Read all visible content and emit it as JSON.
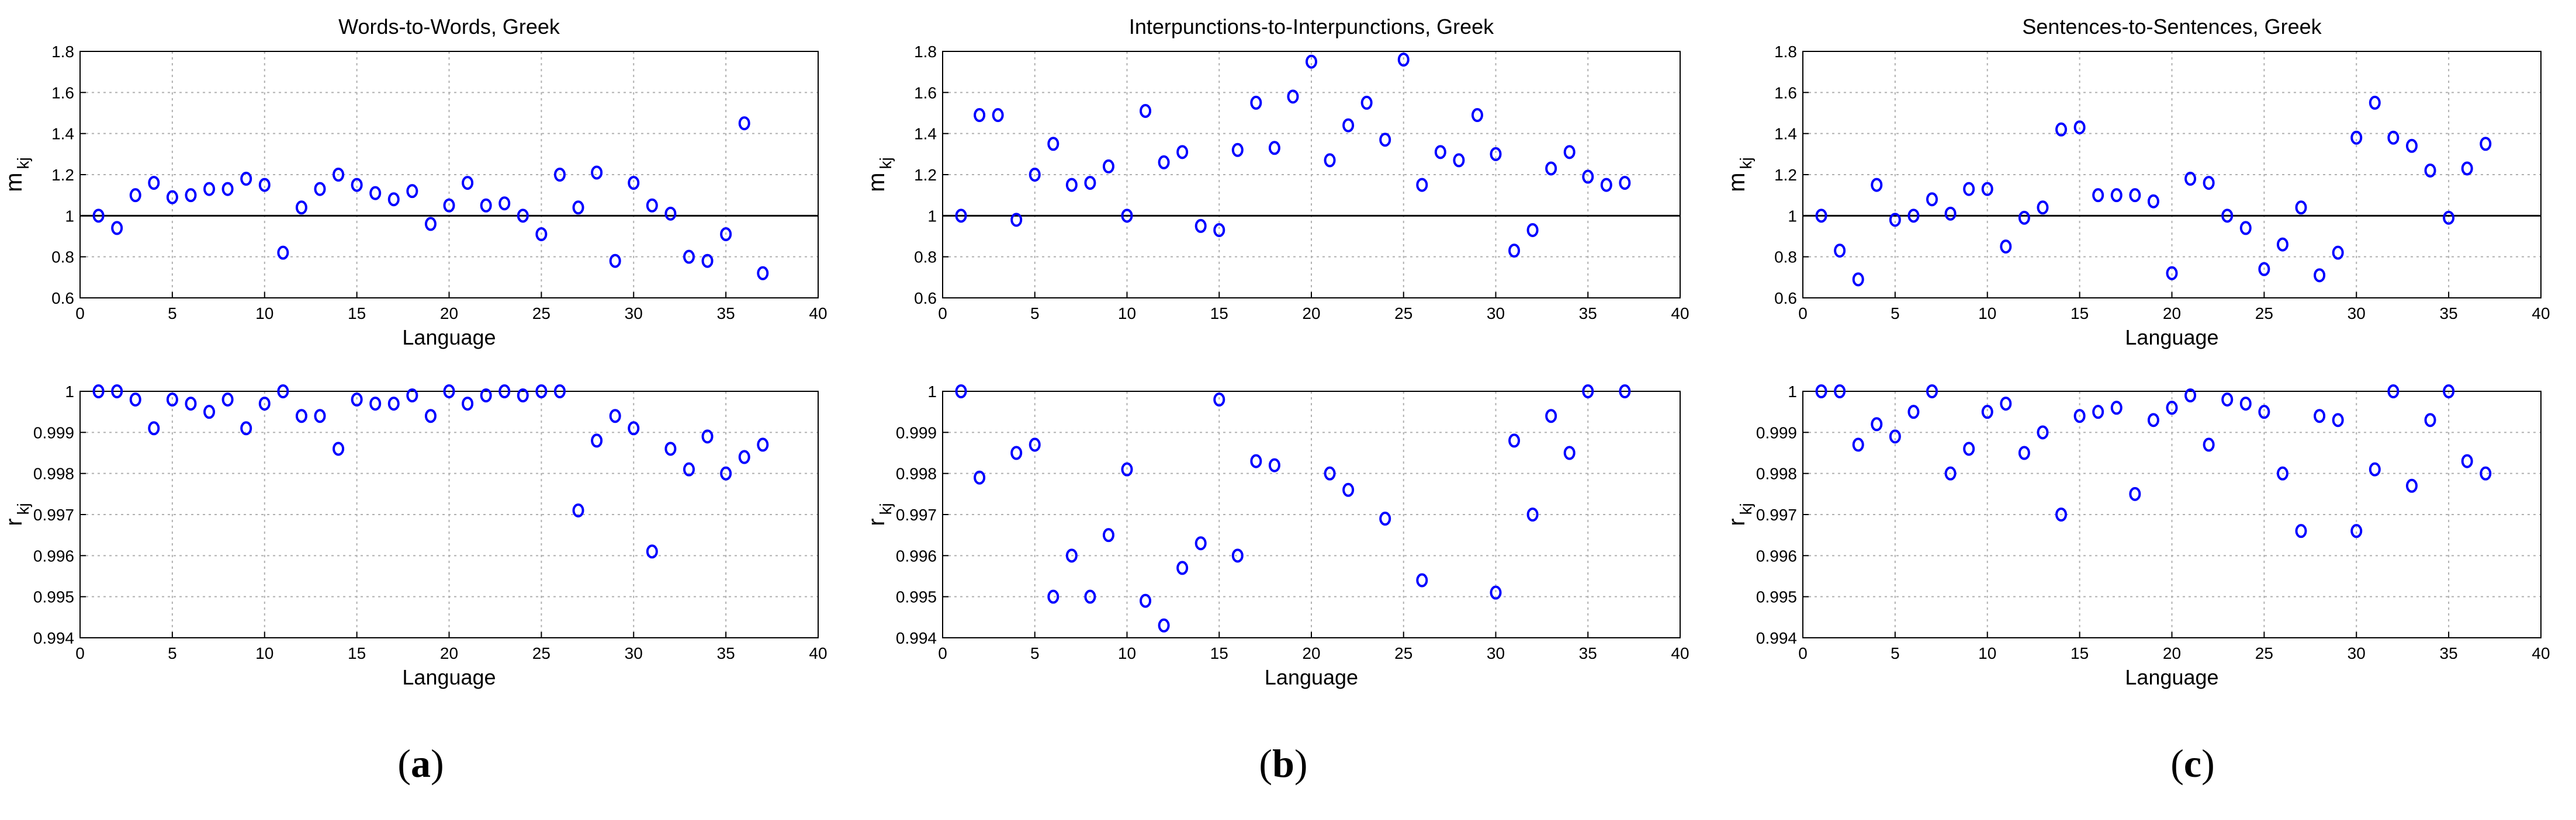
{
  "colors": {
    "marker": "#0000ff",
    "reference_line": "#000000",
    "grid": "#b0b0b0",
    "axes": "#000000"
  },
  "captions": [
    {
      "open": "(",
      "letter": "a",
      "close": ")"
    },
    {
      "open": "(",
      "letter": "b",
      "close": ")"
    },
    {
      "open": "(",
      "letter": "c",
      "close": ")"
    }
  ],
  "chart_data": [
    {
      "type": "scatter",
      "panel": "a",
      "row": "top",
      "title": "Words-to-Words, Greek",
      "xlabel": "Language",
      "ylabel": "m kj",
      "xlim": [
        0,
        40
      ],
      "ylim": [
        0.6,
        1.8
      ],
      "grid": true,
      "reference_line_y": 1,
      "xticks": [
        "0",
        "5",
        "10",
        "15",
        "20",
        "25",
        "30",
        "35",
        "40"
      ],
      "yticks": [
        "0.6",
        "0.8",
        "1",
        "1.2",
        "1.4",
        "1.6",
        "1.8"
      ],
      "x": [
        1,
        2,
        3,
        4,
        5,
        6,
        7,
        8,
        9,
        10,
        11,
        12,
        13,
        14,
        15,
        16,
        17,
        18,
        19,
        20,
        21,
        22,
        23,
        24,
        25,
        26,
        27,
        28,
        29,
        30,
        31,
        32,
        33,
        34,
        35,
        36,
        37
      ],
      "y": [
        1.0,
        0.94,
        1.1,
        1.16,
        1.09,
        1.1,
        1.13,
        1.13,
        1.18,
        1.15,
        0.82,
        1.04,
        1.13,
        1.2,
        1.15,
        1.11,
        1.08,
        1.12,
        0.96,
        1.05,
        1.16,
        1.05,
        1.06,
        1.0,
        0.91,
        1.2,
        1.04,
        1.21,
        0.78,
        1.16,
        1.05,
        1.01,
        0.8,
        0.78,
        0.91,
        1.45,
        0.72
      ]
    },
    {
      "type": "scatter",
      "panel": "a",
      "row": "bottom",
      "title": "",
      "xlabel": "Language",
      "ylabel": "r kj",
      "xlim": [
        0,
        40
      ],
      "ylim": [
        0.994,
        1.0
      ],
      "grid": true,
      "xticks": [
        "0",
        "5",
        "10",
        "15",
        "20",
        "25",
        "30",
        "35",
        "40"
      ],
      "yticks": [
        "0.994",
        "0.995",
        "0.996",
        "0.997",
        "0.998",
        "0.999",
        "1"
      ],
      "x": [
        1,
        2,
        3,
        4,
        5,
        6,
        7,
        8,
        9,
        10,
        11,
        12,
        13,
        14,
        15,
        16,
        17,
        18,
        19,
        20,
        21,
        22,
        23,
        24,
        25,
        26,
        27,
        28,
        29,
        30,
        31,
        32,
        33,
        34,
        35,
        36,
        37
      ],
      "y": [
        1.0,
        1.0,
        0.9998,
        0.9991,
        0.9998,
        0.9997,
        0.9995,
        0.9998,
        0.9991,
        0.9997,
        1.0,
        0.9994,
        0.9994,
        0.9986,
        0.9998,
        0.9997,
        0.9997,
        0.9999,
        0.9994,
        1.0,
        0.9997,
        0.9999,
        1.0,
        0.9999,
        1.0,
        1.0,
        0.9971,
        0.9988,
        0.9994,
        0.9991,
        0.9961,
        0.9986,
        0.9981,
        0.9989,
        0.998,
        0.9984,
        0.9987
      ]
    },
    {
      "type": "scatter",
      "panel": "b",
      "row": "top",
      "title": "Interpunctions-to-Interpunctions, Greek",
      "xlabel": "",
      "ylabel": "m kj",
      "xlim": [
        0,
        40
      ],
      "ylim": [
        0.6,
        1.8
      ],
      "grid": true,
      "reference_line_y": 1,
      "xticks": [
        "0",
        "5",
        "10",
        "15",
        "20",
        "25",
        "30",
        "35",
        "40"
      ],
      "yticks": [
        "0.6",
        "0.8",
        "1",
        "1.2",
        "1.4",
        "1.6",
        "1.8"
      ],
      "x": [
        1,
        2,
        3,
        4,
        5,
        6,
        7,
        8,
        9,
        10,
        11,
        12,
        13,
        14,
        15,
        16,
        17,
        18,
        19,
        20,
        21,
        22,
        23,
        24,
        25,
        26,
        27,
        28,
        29,
        30,
        31,
        32,
        33,
        34,
        35,
        36,
        37
      ],
      "y": [
        1.0,
        1.49,
        1.49,
        0.98,
        1.2,
        1.35,
        1.15,
        1.16,
        1.24,
        1.0,
        1.51,
        1.26,
        1.31,
        0.95,
        0.93,
        1.32,
        1.55,
        1.33,
        1.58,
        1.75,
        1.27,
        1.44,
        1.55,
        1.37,
        1.76,
        1.15,
        1.31,
        1.27,
        1.49,
        1.3,
        0.83,
        0.93,
        1.23,
        1.31,
        1.19,
        1.15,
        1.16
      ]
    },
    {
      "type": "scatter",
      "panel": "b",
      "row": "bottom",
      "title": "",
      "xlabel": "Language",
      "ylabel": "r kj",
      "xlim": [
        0,
        40
      ],
      "ylim": [
        0.994,
        1.0
      ],
      "grid": true,
      "xticks": [
        "0",
        "5",
        "10",
        "15",
        "20",
        "25",
        "30",
        "35",
        "40"
      ],
      "yticks": [
        "0.994",
        "0.995",
        "0.996",
        "0.997",
        "0.998",
        "0.999",
        "1"
      ],
      "x": [
        1,
        2,
        4,
        5,
        6,
        7,
        8,
        9,
        10,
        11,
        12,
        13,
        14,
        15,
        16,
        17,
        18,
        21,
        22,
        24,
        26,
        30,
        31,
        32,
        33,
        34,
        35,
        37
      ],
      "y": [
        1.0,
        0.9979,
        0.9985,
        0.9987,
        0.995,
        0.996,
        0.995,
        0.9965,
        0.9981,
        0.9949,
        0.9943,
        0.9957,
        0.9963,
        0.9998,
        0.996,
        0.9983,
        0.9982,
        0.998,
        0.9976,
        0.9969,
        0.9954,
        0.9951,
        0.9988,
        0.997,
        0.9994,
        0.9985,
        1.0,
        1.0
      ]
    },
    {
      "type": "scatter",
      "panel": "c",
      "row": "top",
      "title": "Sentences-to-Sentences, Greek",
      "xlabel": "Language",
      "ylabel": "m kj",
      "xlim": [
        0,
        40
      ],
      "ylim": [
        0.6,
        1.8
      ],
      "grid": true,
      "reference_line_y": 1,
      "xticks": [
        "0",
        "5",
        "10",
        "15",
        "20",
        "25",
        "30",
        "35",
        "40"
      ],
      "yticks": [
        "0.6",
        "0.8",
        "1",
        "1.2",
        "1.4",
        "1.6",
        "1.8"
      ],
      "x": [
        1,
        2,
        3,
        4,
        5,
        6,
        7,
        8,
        9,
        10,
        11,
        12,
        13,
        14,
        15,
        16,
        17,
        18,
        19,
        20,
        21,
        22,
        23,
        24,
        25,
        26,
        27,
        28,
        29,
        30,
        31,
        32,
        33,
        34,
        35,
        36,
        37
      ],
      "y": [
        1.0,
        0.83,
        0.69,
        1.15,
        0.98,
        1.0,
        1.08,
        1.01,
        1.13,
        1.13,
        0.85,
        0.99,
        1.04,
        1.42,
        1.43,
        1.1,
        1.1,
        1.1,
        1.07,
        0.72,
        1.18,
        1.16,
        1.0,
        0.94,
        0.74,
        0.86,
        1.04,
        0.71,
        0.82,
        1.38,
        1.55,
        1.38,
        1.34,
        1.22,
        0.99,
        1.23,
        1.35
      ]
    },
    {
      "type": "scatter",
      "panel": "c",
      "row": "bottom",
      "title": "",
      "xlabel": "Language",
      "ylabel": "r kj",
      "xlim": [
        0,
        40
      ],
      "ylim": [
        0.994,
        1.0
      ],
      "grid": true,
      "xticks": [
        "0",
        "5",
        "10",
        "15",
        "20",
        "25",
        "30",
        "35",
        "40"
      ],
      "yticks": [
        "0.994",
        "0.995",
        "0.996",
        "0.997",
        "0.998",
        "0.999",
        "1"
      ],
      "x": [
        1,
        2,
        3,
        4,
        5,
        6,
        7,
        8,
        9,
        10,
        11,
        12,
        13,
        14,
        15,
        16,
        17,
        18,
        19,
        20,
        21,
        22,
        23,
        24,
        25,
        26,
        27,
        28,
        29,
        30,
        31,
        32,
        33,
        34,
        35,
        36,
        37
      ],
      "y": [
        1.0,
        1.0,
        0.9987,
        0.9992,
        0.9989,
        0.9995,
        1.0,
        0.998,
        0.9986,
        0.9995,
        0.9997,
        0.9985,
        0.999,
        0.997,
        0.9994,
        0.9995,
        0.9996,
        0.9975,
        0.9993,
        0.9996,
        0.9999,
        0.9987,
        0.9998,
        0.9997,
        0.9995,
        0.998,
        0.9966,
        0.9994,
        0.9993,
        0.9966,
        0.9981,
        1.0,
        0.9977,
        0.9993,
        1.0,
        0.9983,
        0.998
      ]
    }
  ]
}
